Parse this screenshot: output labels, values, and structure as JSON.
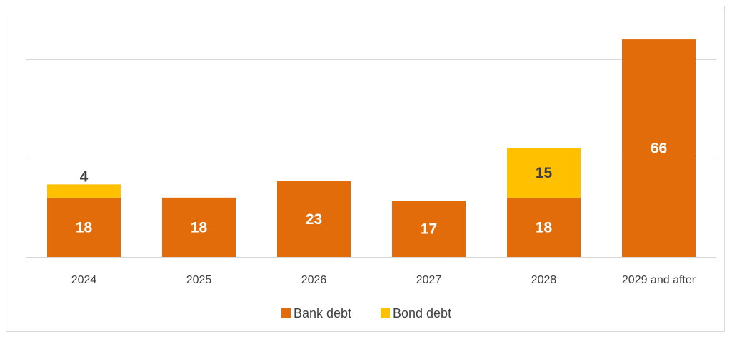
{
  "chart_data": {
    "type": "bar",
    "stacked": true,
    "categories": [
      "2024",
      "2025",
      "2026",
      "2027",
      "2028",
      "2029 and after"
    ],
    "series": [
      {
        "name": "Bank debt",
        "color": "#e36c0a",
        "values": [
          18,
          18,
          23,
          17,
          18,
          66
        ]
      },
      {
        "name": "Bond debt",
        "color": "#ffc000",
        "values": [
          4,
          0,
          0,
          0,
          15,
          0
        ]
      }
    ],
    "data_labels": [
      [
        "18",
        "18",
        "23",
        "17",
        "18",
        "66"
      ],
      [
        "4",
        "",
        "",
        "",
        "15",
        ""
      ]
    ],
    "ylim": [
      0,
      70
    ],
    "gridlines": [
      0,
      30,
      60
    ],
    "grid": true,
    "legend_position": "bottom"
  }
}
